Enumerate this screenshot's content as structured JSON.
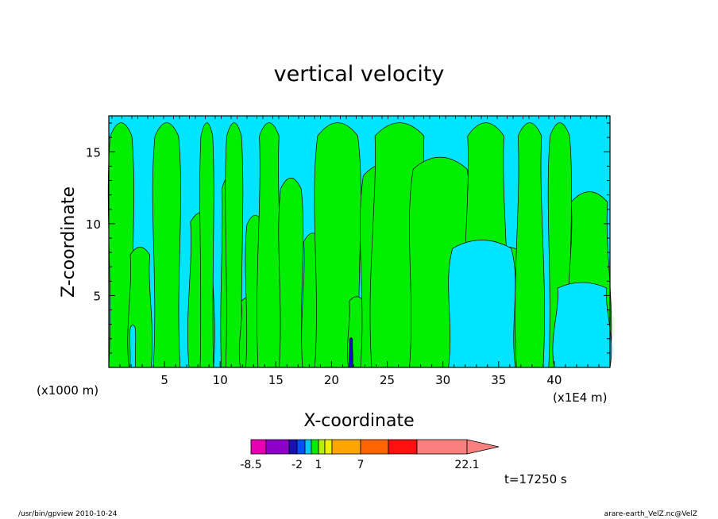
{
  "chart_data": {
    "type": "contour",
    "title": "vertical velocity",
    "xlabel": "X-coordinate",
    "ylabel": "Z-coordinate",
    "x_unit": "(x1E4 m)",
    "y_unit": "(x1000 m)",
    "xlim": [
      0,
      45
    ],
    "ylim": [
      0,
      17.5
    ],
    "x_ticks": [
      "5",
      "10",
      "15",
      "20",
      "25",
      "30",
      "35",
      "40"
    ],
    "y_ticks": [
      "5",
      "10",
      "15"
    ],
    "fill_colors": {
      "negative": "#00e5ff",
      "positive": "#00ee00",
      "strong_down": "#1010cc"
    },
    "regions": [
      {
        "sign": "positive",
        "x": [
          0.0,
          2.2
        ],
        "ymax": 17.5
      },
      {
        "sign": "positive",
        "x": [
          1.8,
          3.8
        ],
        "ymax": 8.5
      },
      {
        "sign": "positive",
        "x": [
          4.0,
          6.4
        ],
        "ymax": 17.5
      },
      {
        "sign": "positive",
        "x": [
          7.2,
          9.4
        ],
        "ymax": 11.0
      },
      {
        "sign": "positive",
        "x": [
          8.2,
          9.4
        ],
        "ymax": 17.5
      },
      {
        "sign": "positive",
        "x": [
          10.1,
          11.2
        ],
        "ymax": 13.5
      },
      {
        "sign": "positive",
        "x": [
          10.5,
          12.0
        ],
        "ymax": 17.5
      },
      {
        "sign": "positive",
        "x": [
          11.8,
          13.5
        ],
        "ymax": 5.0
      },
      {
        "sign": "positive",
        "x": [
          12.3,
          14.0
        ],
        "ymax": 10.8
      },
      {
        "sign": "positive",
        "x": [
          13.4,
          15.4
        ],
        "ymax": 17.5
      },
      {
        "sign": "positive",
        "x": [
          15.3,
          17.4
        ],
        "ymax": 13.5
      },
      {
        "sign": "positive",
        "x": [
          17.4,
          19.2
        ],
        "ymax": 9.5
      },
      {
        "sign": "positive",
        "x": [
          18.5,
          22.6
        ],
        "ymax": 17.5
      },
      {
        "sign": "positive",
        "x": [
          21.5,
          23.0
        ],
        "ymax": 5.0
      },
      {
        "sign": "positive",
        "x": [
          22.6,
          26.8
        ],
        "ymax": 14.5
      },
      {
        "sign": "positive",
        "x": [
          23.6,
          28.6
        ],
        "ymax": 17.5
      },
      {
        "sign": "positive",
        "x": [
          27.0,
          32.5
        ],
        "ymax": 15.0
      },
      {
        "sign": "positive",
        "x": [
          32.0,
          35.7
        ],
        "ymax": 17.5
      },
      {
        "sign": "positive",
        "x": [
          34.2,
          37.5
        ],
        "ymax": 8.5
      },
      {
        "sign": "positive",
        "x": [
          36.6,
          39.0
        ],
        "ymax": 17.5
      },
      {
        "sign": "positive",
        "x": [
          39.5,
          41.5
        ],
        "ymax": 17.5
      },
      {
        "sign": "positive",
        "x": [
          41.3,
          45.0
        ],
        "ymax": 12.5
      },
      {
        "sign": "negative",
        "x": [
          30.5,
          36.5
        ],
        "ymax": 9.0
      },
      {
        "sign": "negative",
        "x": [
          40.0,
          45.0
        ],
        "ymax": 6.0
      },
      {
        "sign": "negative",
        "x": [
          1.9,
          2.4
        ],
        "ymax": 3.0
      },
      {
        "sign": "strong_down",
        "x": [
          21.6,
          21.9
        ],
        "ymax": 2.1
      }
    ],
    "colorbar": {
      "colors": [
        "#e600b4",
        "#8c00c8",
        "#1a10b0",
        "#0050ff",
        "#00c8ff",
        "#00ee00",
        "#b4f000",
        "#f0f000",
        "#ffa500",
        "#ff6400",
        "#ff1010",
        "#fa8080"
      ],
      "tick_labels": [
        "-8.5",
        "-2",
        "1",
        "7",
        "22.1"
      ],
      "extend": "max"
    },
    "time_label": "t=17250 s"
  },
  "footer": {
    "left": "/usr/bin/gpview  2010-10-24",
    "right": "arare-earth_VelZ.nc@VelZ"
  }
}
